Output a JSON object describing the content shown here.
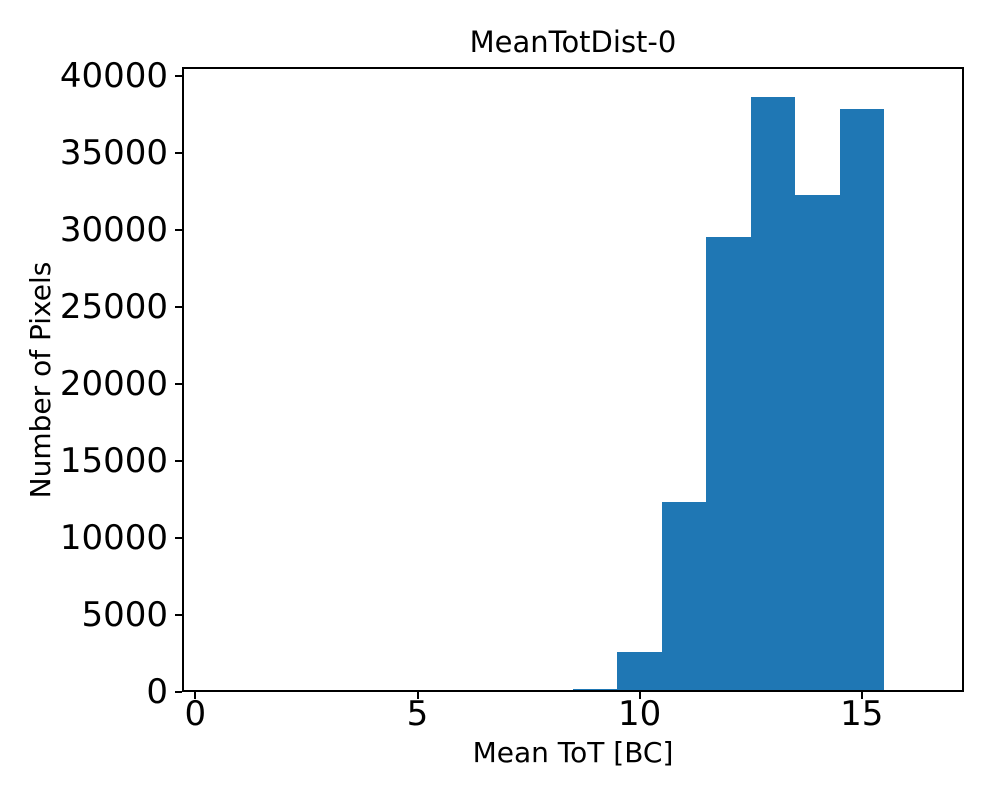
{
  "chart_data": {
    "type": "bar",
    "histogram": true,
    "title": "MeanTotDist-0",
    "xlabel": "Mean ToT [BC]",
    "ylabel": "Number of Pixels",
    "bar_color": "#1f77b4",
    "axis_color": "#000000",
    "bin_edges": [
      0.5,
      1.5,
      2.5,
      3.5,
      4.5,
      5.5,
      6.5,
      7.5,
      8.5,
      9.5,
      10.5,
      11.5,
      12.5,
      13.5,
      14.5,
      15.5,
      16.5
    ],
    "counts": [
      0,
      110,
      0,
      65,
      65,
      65,
      65,
      65,
      170,
      2600,
      12350,
      29540,
      38680,
      32290,
      37860,
      0
    ],
    "xlim": [
      -0.3,
      17.3
    ],
    "ylim": [
      0,
      40600
    ],
    "xticks": [
      0,
      5,
      10,
      15
    ],
    "xtick_labels": [
      "0",
      "5",
      "10",
      "15"
    ],
    "yticks": [
      0,
      5000,
      10000,
      15000,
      20000,
      25000,
      30000,
      35000,
      40000
    ],
    "ytick_labels": [
      "0",
      "5000",
      "10000",
      "15000",
      "20000",
      "25000",
      "30000",
      "35000",
      "40000"
    ],
    "grid": false,
    "legend": "none"
  }
}
